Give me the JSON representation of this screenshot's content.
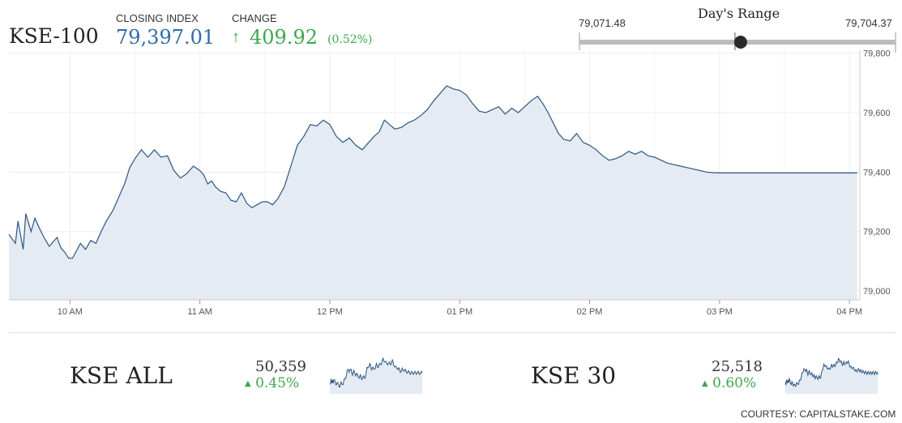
{
  "header": {
    "index_name": "KSE-100",
    "closing_label": "CLOSING INDEX",
    "closing_value": "79,397.01",
    "change_label": "CHANGE",
    "change_value": "409.92",
    "change_pct": "(0.52%)",
    "change_arrow": "↑"
  },
  "days_range": {
    "title": "Day's Range",
    "low": "79,071.48",
    "high": "79,704.37",
    "current_fraction": 0.51
  },
  "chart_data": {
    "type": "area",
    "title": "",
    "xlabel": "",
    "ylabel": "",
    "x_ticks": [
      "10 AM",
      "11 AM",
      "12 PM",
      "01 PM",
      "02 PM",
      "03 PM",
      "04 PM"
    ],
    "y_ticks": [
      "79,000",
      "79,200",
      "79,400",
      "79,600",
      "79,800"
    ],
    "ylim": [
      78970,
      79810
    ],
    "xlim": [
      9.53,
      16.08
    ],
    "grid": true,
    "series": [
      {
        "x": [
          9.53,
          9.58,
          9.6,
          9.64,
          9.66,
          9.7,
          9.73,
          9.76,
          9.8,
          9.84,
          9.87,
          9.9,
          9.93,
          9.96,
          9.99,
          10.02,
          10.05,
          10.08,
          10.12,
          10.16,
          10.2,
          10.24,
          10.28,
          10.33,
          10.37,
          10.42,
          10.46,
          10.5,
          10.55,
          10.6,
          10.65,
          10.7,
          10.75,
          10.8,
          10.85,
          10.9,
          10.95,
          11.0,
          11.03,
          11.06,
          11.09,
          11.12,
          11.16,
          11.2,
          11.24,
          11.28,
          11.32,
          11.36,
          11.4,
          11.44,
          11.48,
          11.52,
          11.56,
          11.6,
          11.65,
          11.7,
          11.75,
          11.8,
          11.85,
          11.9,
          11.95,
          12.0,
          12.05,
          12.1,
          12.15,
          12.2,
          12.25,
          12.3,
          12.34,
          12.38,
          12.42,
          12.46,
          12.5,
          12.55,
          12.6,
          12.65,
          12.7,
          12.75,
          12.8,
          12.85,
          12.9,
          12.95,
          13.0,
          13.05,
          13.1,
          13.15,
          13.2,
          13.25,
          13.3,
          13.35,
          13.4,
          13.45,
          13.5,
          13.55,
          13.6,
          13.64,
          13.68,
          13.72,
          13.76,
          13.8,
          13.85,
          13.9,
          13.95,
          14.0,
          14.05,
          14.1,
          14.15,
          14.2,
          14.25,
          14.3,
          14.35,
          14.4,
          14.45,
          14.5,
          14.55,
          14.6,
          14.65,
          14.7,
          14.75,
          14.8,
          14.85,
          14.9,
          14.95,
          15.0,
          15.05,
          15.1,
          15.15,
          15.2,
          15.25,
          15.3,
          15.35,
          15.4,
          15.45,
          15.5,
          15.6,
          15.7,
          15.8,
          15.9,
          16.0,
          16.06
        ],
        "values": [
          79190,
          79160,
          79235,
          79140,
          79260,
          79200,
          79245,
          79215,
          79180,
          79150,
          79165,
          79180,
          79145,
          79130,
          79110,
          79110,
          79135,
          79160,
          79140,
          79170,
          79160,
          79200,
          79235,
          79270,
          79310,
          79360,
          79415,
          79445,
          79475,
          79450,
          79475,
          79450,
          79455,
          79405,
          79380,
          79395,
          79420,
          79405,
          79390,
          79360,
          79370,
          79350,
          79335,
          79330,
          79305,
          79300,
          79330,
          79295,
          79280,
          79290,
          79300,
          79300,
          79290,
          79310,
          79350,
          79420,
          79490,
          79520,
          79560,
          79555,
          79575,
          79560,
          79520,
          79500,
          79515,
          79490,
          79475,
          79500,
          79520,
          79535,
          79575,
          79560,
          79545,
          79550,
          79565,
          79575,
          79590,
          79610,
          79640,
          79665,
          79690,
          79680,
          79675,
          79660,
          79630,
          79605,
          79600,
          79610,
          79620,
          79595,
          79615,
          79600,
          79620,
          79640,
          79655,
          79630,
          79600,
          79565,
          79530,
          79510,
          79505,
          79530,
          79500,
          79490,
          79475,
          79455,
          79440,
          79445,
          79455,
          79470,
          79460,
          79470,
          79455,
          79450,
          79440,
          79430,
          79425,
          79420,
          79415,
          79410,
          79405,
          79400,
          79398,
          79397,
          79397,
          79397,
          79397,
          79397,
          79397,
          79397,
          79397,
          79397,
          79397,
          79397,
          79397,
          79397,
          79397,
          79397,
          79397,
          79397
        ]
      }
    ]
  },
  "mini_cards": [
    {
      "name": "KSE ALL",
      "value": "50,359",
      "arrow": "▲",
      "pct": "0.45%"
    },
    {
      "name": "KSE 30",
      "value": "25,518",
      "arrow": "▲",
      "pct": "0.60%"
    }
  ],
  "footer": {
    "courtesy": "COURTESY: CAPITALSTAKE.COM"
  },
  "colors": {
    "line": "#2c5682",
    "fill": "#e4ebf2",
    "up": "#3ea84a",
    "accent": "#2e6da4"
  }
}
